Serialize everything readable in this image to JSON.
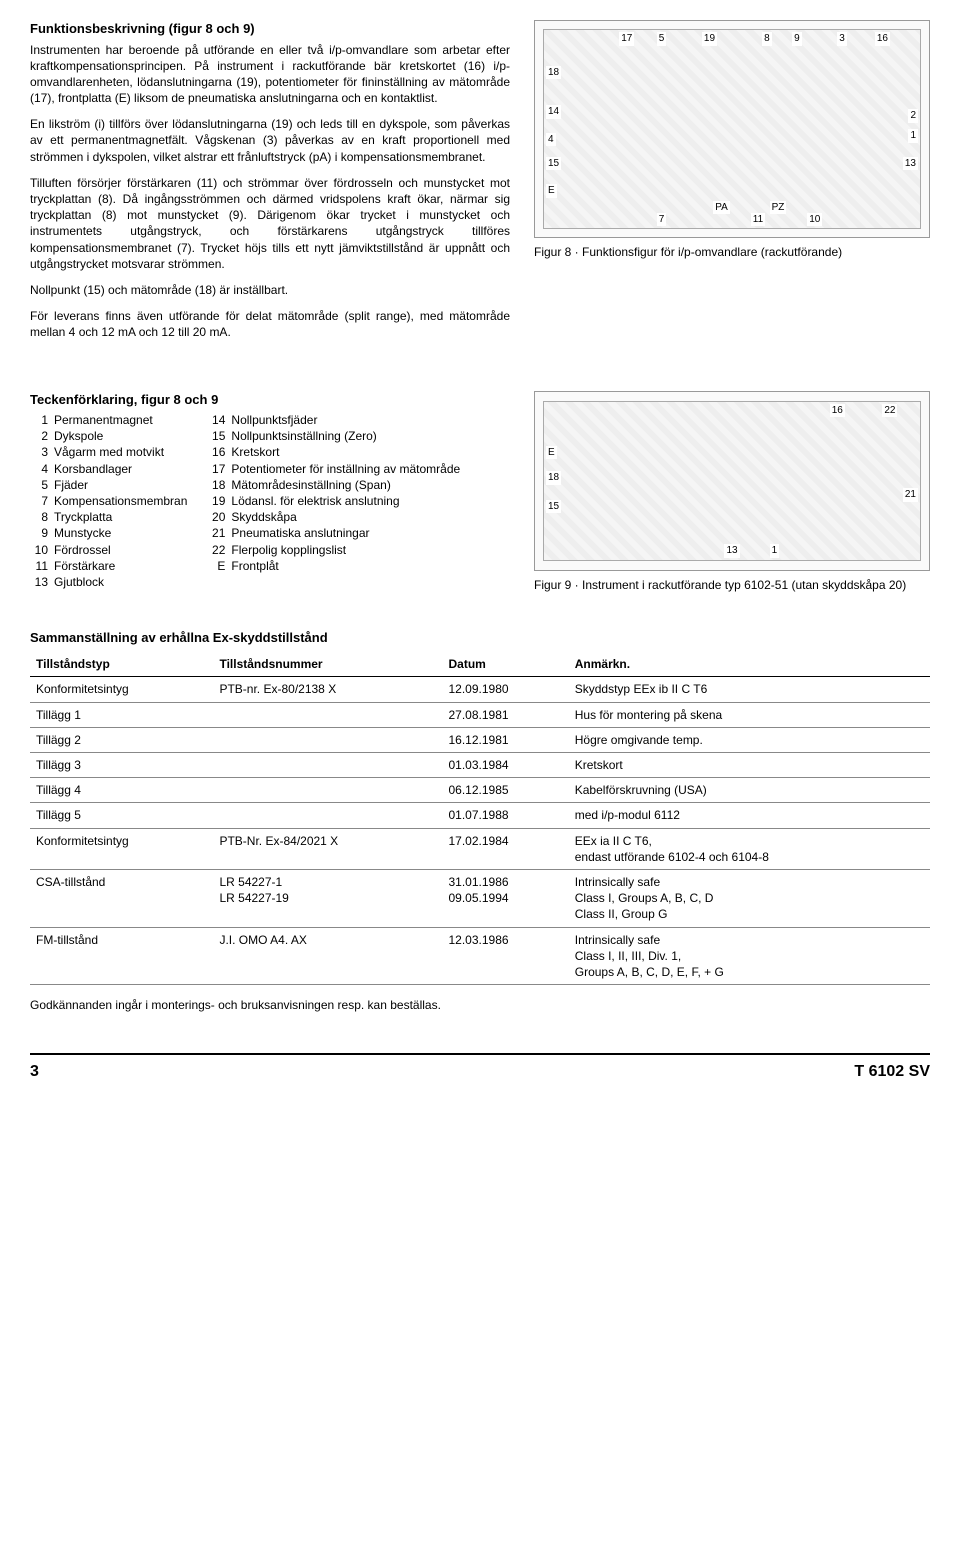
{
  "section1": {
    "title": "Funktionsbeskrivning (figur 8 och 9)",
    "p1": "Instrumenten har beroende på utförande en eller två i/p-omvandlare som arbetar efter kraftkompensationsprincipen. På instrument i rackutförande bär kretskortet (16) i/p-omvandlarenheten, lödanslutningarna (19), potentiometer för fininställning av mätområde (17), frontplatta (E) liksom de pneumatiska anslutningarna och en kontaktlist.",
    "p2": "En likström (i) tillförs över lödanslutningarna (19) och leds till en dykspole, som påverkas av ett permanentmagnetfält. Vågskenan (3) påverkas av en kraft proportionell med strömmen i dykspolen, vilket alstrar ett frånluftstryck (pA) i kompensationsmembranet.",
    "p3": "Tilluften försörjer förstärkaren (11) och strömmar över fördrosseln och munstycket mot tryckplattan (8). Då ingångsströmmen och därmed vridspolens kraft ökar, närmar sig tryckplattan (8) mot munstycket (9). Därigenom ökar trycket i munstycket och instrumentets utgångstryck, och förstärkarens utgångstryck tillföres kompensationsmembranet (7). Trycket höjs tills ett nytt jämviktstillstånd är uppnått och utgångstrycket motsvarar strömmen.",
    "p4": "Nollpunkt (15) och mätområde (18) är inställbart.",
    "p5": "För leverans finns även utförande för delat mätområde (split range), med mätområde mellan 4 och 12 mA och 12 till 20 mA."
  },
  "fig8": {
    "caption": "Figur 8 · Funktionsfigur för i/p-omvandlare (rackutförande)",
    "labels": [
      "17",
      "5",
      "19",
      "8",
      "9",
      "3",
      "16",
      "18",
      "14",
      "4",
      "15",
      "E",
      "7",
      "11",
      "10",
      "2",
      "1",
      "13",
      "PA",
      "PZ"
    ]
  },
  "fig9": {
    "caption": "Figur 9 · Instrument i rackutförande typ 6102-51 (utan skyddskåpa 20)",
    "labels": [
      "16",
      "22",
      "E",
      "18",
      "15",
      "13",
      "1",
      "21"
    ]
  },
  "legend": {
    "title": "Teckenförklaring, figur 8 och 9",
    "left": [
      {
        "n": "1",
        "t": "Permanentmagnet"
      },
      {
        "n": "2",
        "t": "Dykspole"
      },
      {
        "n": "3",
        "t": "Vågarm med motvikt"
      },
      {
        "n": "4",
        "t": "Korsbandlager"
      },
      {
        "n": "5",
        "t": "Fjäder"
      },
      {
        "n": "7",
        "t": "Kompensationsmembran"
      },
      {
        "n": "8",
        "t": "Tryckplatta"
      },
      {
        "n": "9",
        "t": "Munstycke"
      },
      {
        "n": "10",
        "t": "Fördrossel"
      },
      {
        "n": "11",
        "t": "Förstärkare"
      },
      {
        "n": "13",
        "t": "Gjutblock"
      }
    ],
    "right": [
      {
        "n": "14",
        "t": "Nollpunktsfjäder"
      },
      {
        "n": "15",
        "t": "Nollpunktsinställning (Zero)"
      },
      {
        "n": "16",
        "t": "Kretskort"
      },
      {
        "n": "17",
        "t": "Potentiometer för inställning av mätområde"
      },
      {
        "n": "18",
        "t": "Mätområdesinställning (Span)"
      },
      {
        "n": "19",
        "t": "Lödansl. för elektrisk anslutning"
      },
      {
        "n": "20",
        "t": "Skyddskåpa"
      },
      {
        "n": "21",
        "t": "Pneumatiska anslutningar"
      },
      {
        "n": "22",
        "t": "Flerpolig kopplingslist"
      },
      {
        "n": "E",
        "t": "Frontplåt"
      }
    ]
  },
  "extable": {
    "title": "Sammanställning av erhållna Ex-skyddstillstånd",
    "headers": [
      "Tillståndstyp",
      "Tillståndsnummer",
      "Datum",
      "Anmärkn."
    ],
    "rows": [
      [
        "Konformitetsintyg",
        "PTB-nr. Ex-80/2138 X",
        "12.09.1980",
        "Skyddstyp EEx ib II C T6"
      ],
      [
        "Tillägg 1",
        "",
        "27.08.1981",
        "Hus för montering på skena"
      ],
      [
        "Tillägg 2",
        "",
        "16.12.1981",
        "Högre omgivande temp."
      ],
      [
        "Tillägg 3",
        "",
        "01.03.1984",
        "Kretskort"
      ],
      [
        "Tillägg 4",
        "",
        "06.12.1985",
        "Kabelförskruvning (USA)"
      ],
      [
        "Tillägg 5",
        "",
        "01.07.1988",
        "med i/p-modul 6112"
      ],
      [
        "Konformitetsintyg",
        "PTB-Nr. Ex-84/2021 X",
        "17.02.1984",
        "EEx ia II C T6,\nendast utförande 6102-4 och 6104-8"
      ],
      [
        "CSA-tillstånd",
        "LR 54227-1\nLR 54227-19",
        "31.01.1986\n09.05.1994",
        "Intrinsically safe\nClass I, Groups A, B, C, D\nClass II, Group G"
      ],
      [
        "FM-tillstånd",
        "J.I. OMO A4. AX",
        "12.03.1986",
        "Intrinsically safe\nClass I, II, III, Div. 1,\nGroups A, B, C, D, E, F, + G"
      ]
    ],
    "footnote": "Godkännanden ingår i monterings- och bruksanvisningen resp. kan beställas."
  },
  "footer": {
    "page": "3",
    "doc": "T 6102 SV"
  }
}
